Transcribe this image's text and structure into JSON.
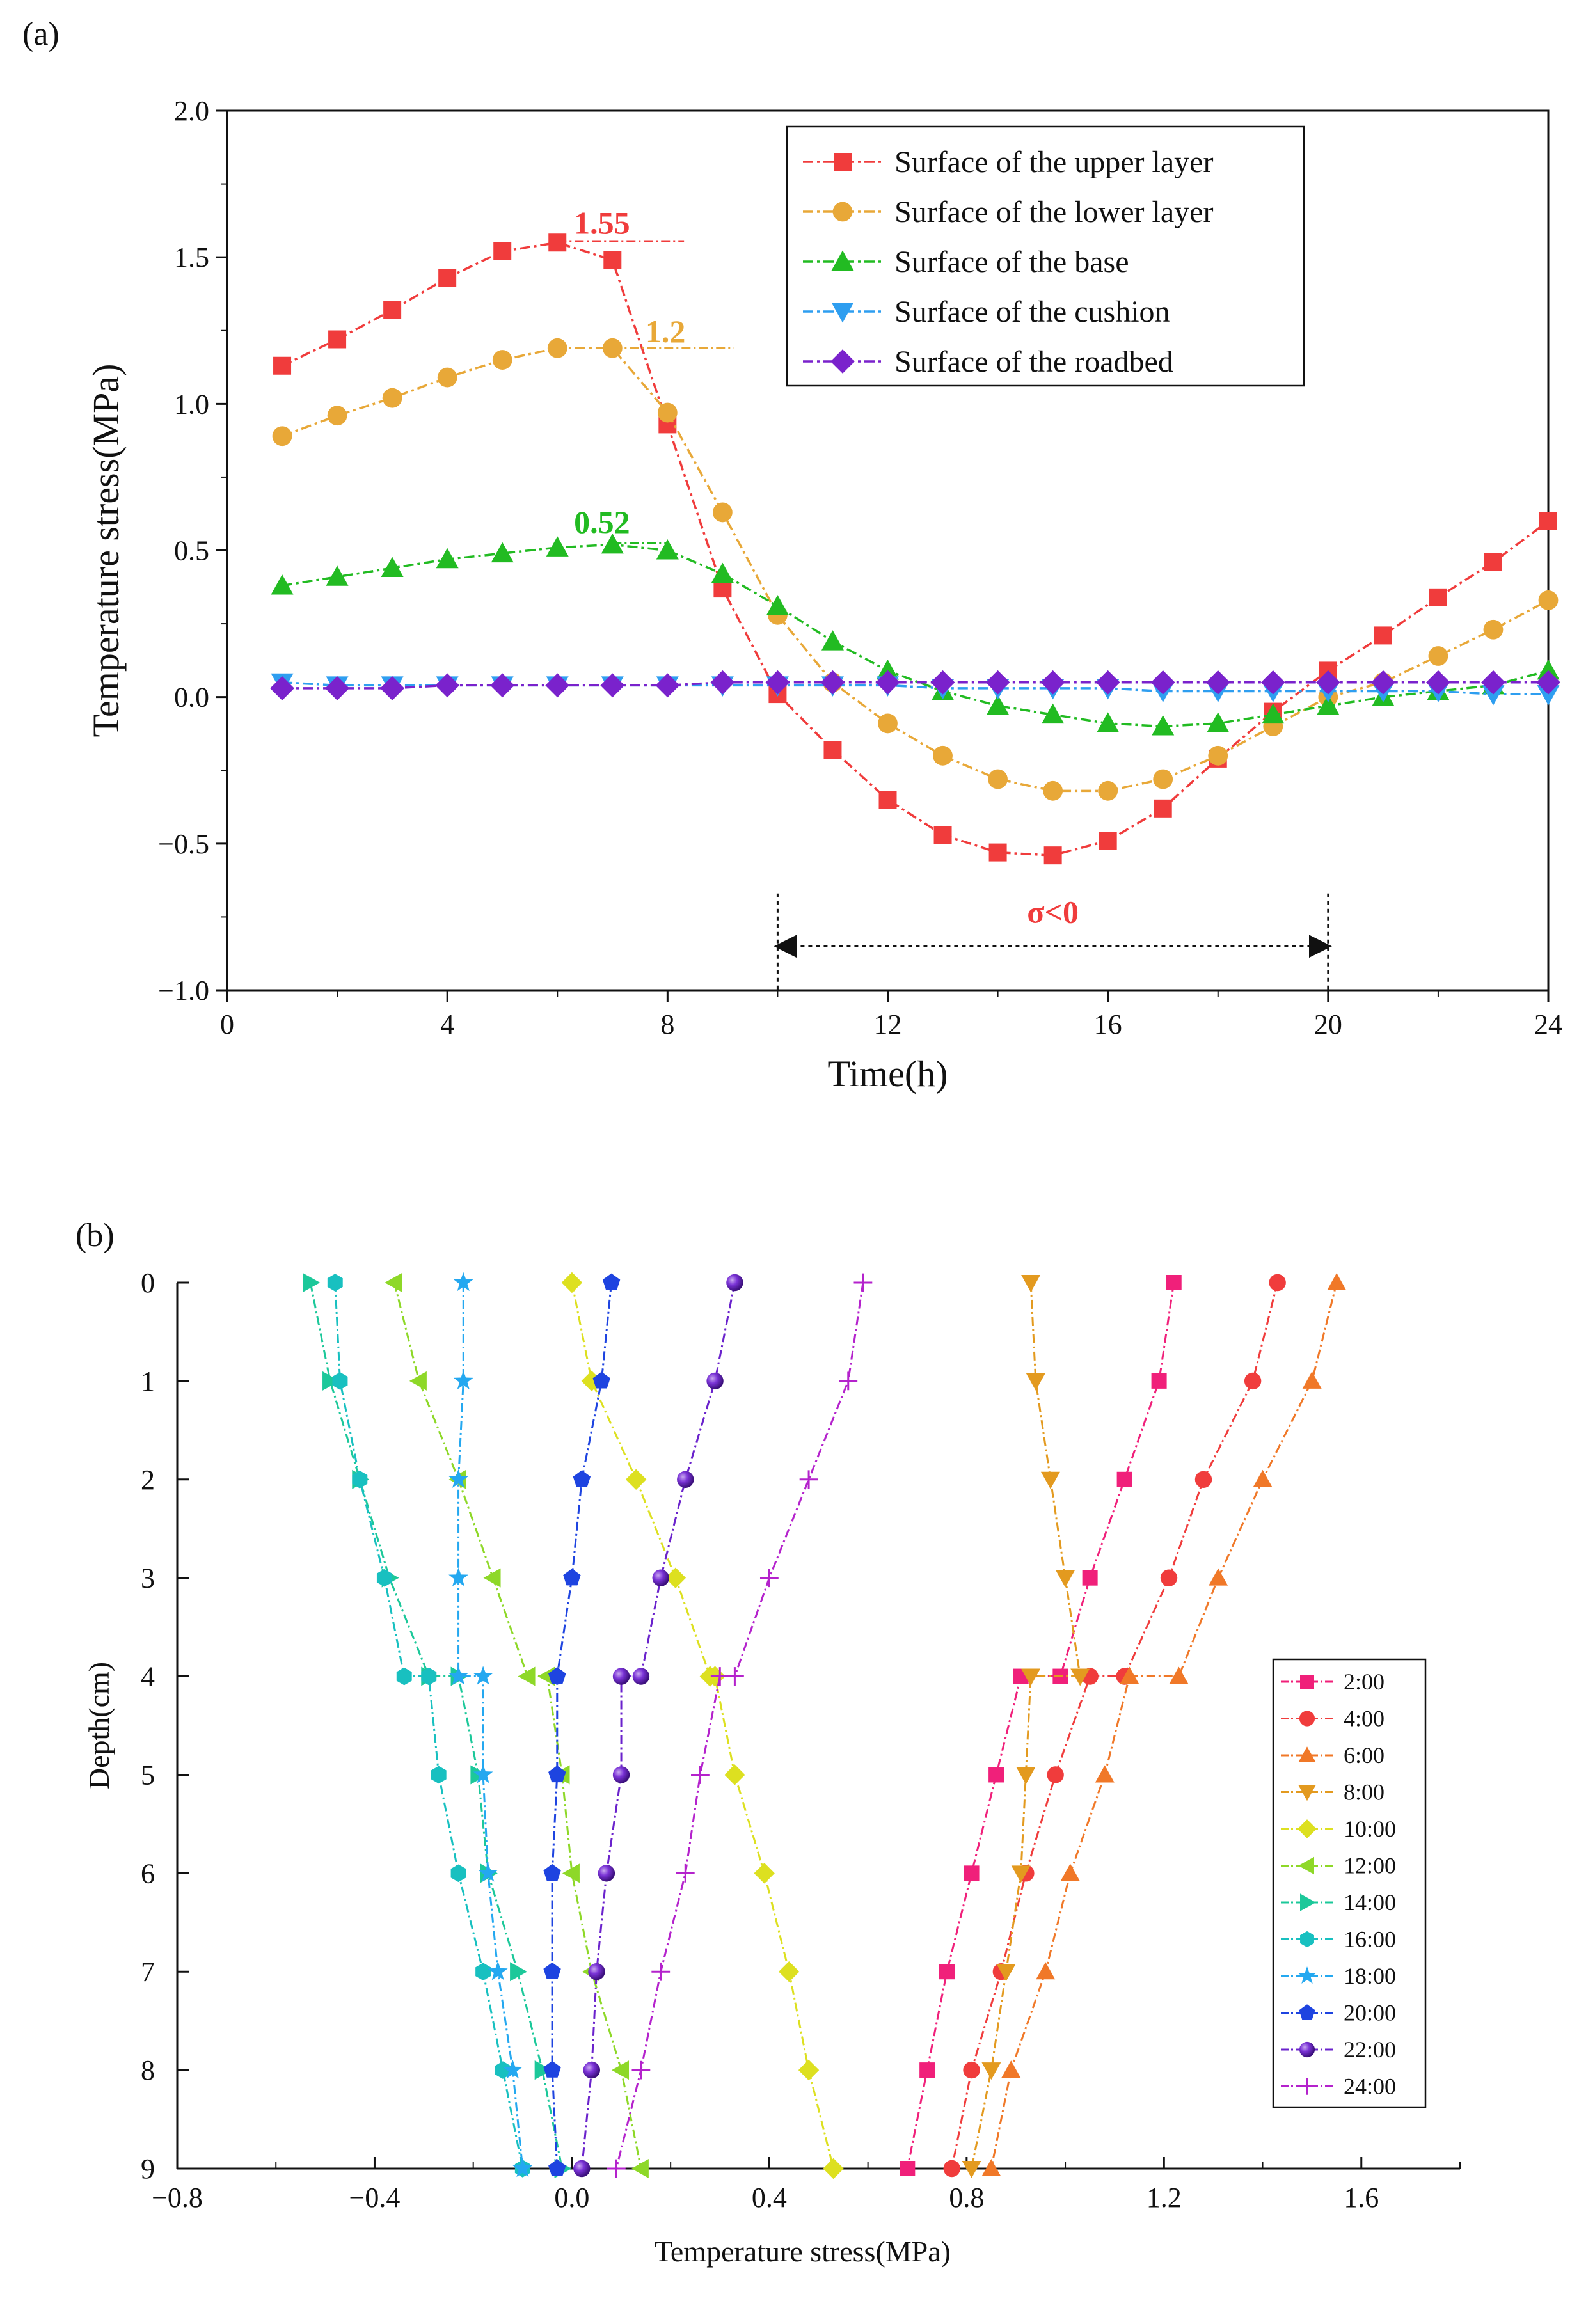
{
  "chart_data": [
    {
      "panel": "(a)",
      "type": "line",
      "xlabel": "Time(h)",
      "ylabel": "Temperature stress(MPa)",
      "xlim": [
        0,
        24
      ],
      "ylim": [
        -1.0,
        2.0
      ],
      "xticks": [
        "0",
        "4",
        "8",
        "12",
        "16",
        "20",
        "24"
      ],
      "yticks": [
        "-1.0",
        "-0.5",
        "0.0",
        "0.5",
        "1.0",
        "1.5",
        "2.0"
      ],
      "x": [
        1,
        2,
        3,
        4,
        5,
        6,
        7,
        8,
        9,
        10,
        11,
        12,
        13,
        14,
        15,
        16,
        17,
        18,
        19,
        20,
        21,
        22,
        23,
        24
      ],
      "series": [
        {
          "name": "Surface of the upper layer",
          "color": "#f03c3c",
          "marker": "square",
          "values": [
            1.13,
            1.22,
            1.32,
            1.43,
            1.52,
            1.55,
            1.49,
            0.93,
            0.37,
            0.01,
            -0.18,
            -0.35,
            -0.47,
            -0.53,
            -0.54,
            -0.49,
            -0.38,
            -0.21,
            -0.05,
            0.09,
            0.21,
            0.34,
            0.46,
            0.6
          ]
        },
        {
          "name": "Surface of the lower layer",
          "color": "#e8a838",
          "marker": "circle",
          "values": [
            0.89,
            0.96,
            1.02,
            1.09,
            1.15,
            1.19,
            1.19,
            0.97,
            0.63,
            0.28,
            0.05,
            -0.09,
            -0.2,
            -0.28,
            -0.32,
            -0.32,
            -0.28,
            -0.2,
            -0.1,
            0.0,
            0.05,
            0.14,
            0.23,
            0.33
          ]
        },
        {
          "name": "Surface of the base",
          "color": "#22bb22",
          "marker": "triangle-up",
          "values": [
            0.38,
            0.41,
            0.44,
            0.47,
            0.49,
            0.51,
            0.52,
            0.5,
            0.42,
            0.31,
            0.19,
            0.09,
            0.02,
            -0.03,
            -0.06,
            -0.09,
            -0.1,
            -0.09,
            -0.06,
            -0.03,
            0.0,
            0.02,
            0.04,
            0.09
          ]
        },
        {
          "name": "Surface of the cushion",
          "color": "#2e9ef0",
          "marker": "triangle-down",
          "values": [
            0.05,
            0.04,
            0.04,
            0.04,
            0.04,
            0.04,
            0.04,
            0.04,
            0.04,
            0.04,
            0.04,
            0.04,
            0.03,
            0.03,
            0.03,
            0.03,
            0.02,
            0.02,
            0.02,
            0.02,
            0.02,
            0.02,
            0.01,
            0.01
          ]
        },
        {
          "name": "Surface of the roadbed",
          "color": "#7a22cc",
          "marker": "diamond",
          "values": [
            0.03,
            0.03,
            0.03,
            0.04,
            0.04,
            0.04,
            0.04,
            0.04,
            0.05,
            0.05,
            0.05,
            0.05,
            0.05,
            0.05,
            0.05,
            0.05,
            0.05,
            0.05,
            0.05,
            0.05,
            0.05,
            0.05,
            0.05,
            0.05
          ]
        }
      ],
      "annotations": [
        {
          "text": "1.55",
          "x": 6.3,
          "y": 1.58,
          "color": "#f03c3c",
          "line_from": [
            6,
            1.555
          ],
          "line_to": [
            8.3,
            1.555
          ]
        },
        {
          "text": "1.2",
          "x": 7.6,
          "y": 1.21,
          "color": "#e8a838",
          "line_from": [
            7,
            1.19
          ],
          "line_to": [
            9.2,
            1.19
          ]
        },
        {
          "text": "0.52",
          "x": 6.3,
          "y": 0.56,
          "color": "#22bb22",
          "line_from": [
            7,
            0.525
          ],
          "line_to": [
            8.0,
            0.525
          ]
        },
        {
          "text": "σ<0",
          "x": 15.0,
          "y": -0.77,
          "color": "#f03c3c",
          "arrow_from": 10,
          "arrow_to": 20,
          "arrow_y": -0.85
        }
      ]
    },
    {
      "panel": "(b)",
      "type": "line",
      "xlabel": "Temperature stress(MPa)",
      "ylabel": "Depth(cm)",
      "xlim": [
        -0.8,
        1.8
      ],
      "ylim": [
        9,
        0
      ],
      "xticks": [
        "−0.8",
        "−0.4",
        "0.0",
        "0.4",
        "0.8",
        "1.2",
        "1.6"
      ],
      "yticks": [
        "0",
        "1",
        "2",
        "3",
        "4",
        "5",
        "6",
        "7",
        "8",
        "9"
      ],
      "depth": [
        0,
        1,
        2,
        3,
        4,
        4,
        5,
        6,
        7,
        8,
        9
      ],
      "series": [
        {
          "name": "2:00",
          "color": "#f0207a",
          "marker": "square",
          "values": [
            1.22,
            1.19,
            1.12,
            1.05,
            0.99,
            0.91,
            0.86,
            0.81,
            0.76,
            0.72,
            0.68
          ]
        },
        {
          "name": "4:00",
          "color": "#f03c3c",
          "marker": "circle",
          "values": [
            1.43,
            1.38,
            1.28,
            1.21,
            1.12,
            1.05,
            0.98,
            0.92,
            0.87,
            0.81,
            0.77
          ]
        },
        {
          "name": "6:00",
          "color": "#f07828",
          "marker": "triangle-up",
          "values": [
            1.55,
            1.5,
            1.4,
            1.31,
            1.23,
            1.13,
            1.08,
            1.01,
            0.96,
            0.89,
            0.85
          ]
        },
        {
          "name": "8:00",
          "color": "#e39a1f",
          "marker": "triangle-down",
          "values": [
            0.93,
            0.94,
            0.97,
            1.0,
            1.03,
            0.93,
            0.92,
            0.91,
            0.88,
            0.85,
            0.81
          ]
        },
        {
          "name": "10:00",
          "color": "#dde020",
          "marker": "diamond",
          "values": [
            0.0,
            0.04,
            0.13,
            0.21,
            0.28,
            0.29,
            0.33,
            0.39,
            0.44,
            0.48,
            0.53
          ]
        },
        {
          "name": "12:00",
          "color": "#8ed828",
          "marker": "triangle-left",
          "values": [
            -0.36,
            -0.31,
            -0.23,
            -0.16,
            -0.09,
            -0.05,
            -0.02,
            0.0,
            0.04,
            0.1,
            0.14
          ]
        },
        {
          "name": "14:00",
          "color": "#1cc89a",
          "marker": "triangle-right",
          "values": [
            -0.53,
            -0.49,
            -0.43,
            -0.37,
            -0.29,
            -0.23,
            -0.19,
            -0.17,
            -0.11,
            -0.06,
            -0.02
          ]
        },
        {
          "name": "16:00",
          "color": "#18c0c0",
          "marker": "hexagon",
          "values": [
            -0.48,
            -0.47,
            -0.43,
            -0.38,
            -0.34,
            -0.29,
            -0.27,
            -0.23,
            -0.18,
            -0.14,
            -0.1
          ]
        },
        {
          "name": "18:00",
          "color": "#24a8f0",
          "marker": "star",
          "values": [
            -0.22,
            -0.22,
            -0.23,
            -0.23,
            -0.23,
            -0.18,
            -0.18,
            -0.17,
            -0.15,
            -0.12,
            -0.1
          ]
        },
        {
          "name": "20:00",
          "color": "#1e44e0",
          "marker": "pentagon",
          "values": [
            0.08,
            0.06,
            0.02,
            0.0,
            -0.03,
            -0.03,
            -0.03,
            -0.04,
            -0.04,
            -0.04,
            -0.03
          ]
        },
        {
          "name": "22:00",
          "color": "#6a22cc",
          "marker": "sphere",
          "values": [
            0.33,
            0.29,
            0.23,
            0.18,
            0.14,
            0.1,
            0.1,
            0.07,
            0.05,
            0.04,
            0.02
          ]
        },
        {
          "name": "24:00",
          "color": "#b422cc",
          "marker": "plus",
          "values": [
            0.59,
            0.56,
            0.48,
            0.4,
            0.33,
            0.3,
            0.26,
            0.23,
            0.18,
            0.14,
            0.09
          ]
        }
      ]
    }
  ]
}
